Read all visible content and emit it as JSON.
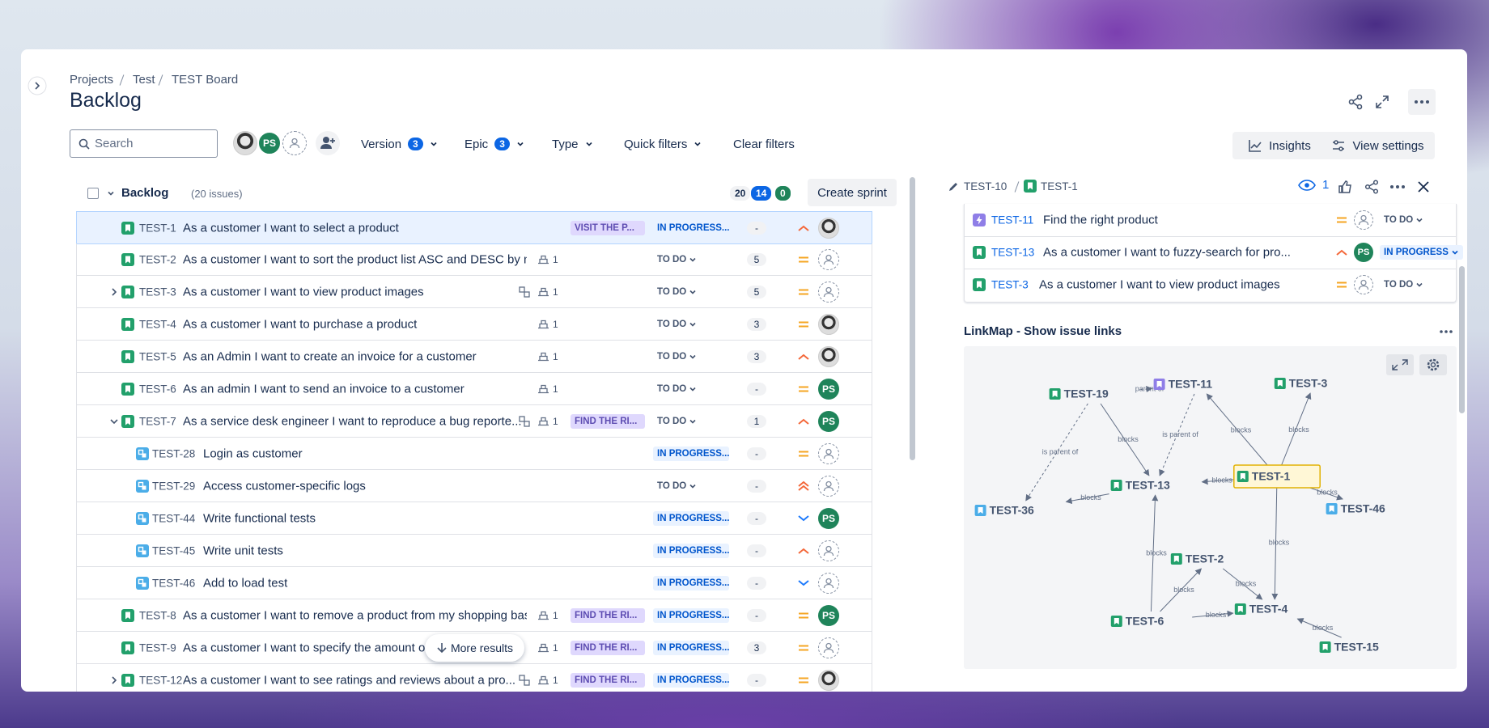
{
  "breadcrumbs": [
    "Projects",
    "Test",
    "TEST Board"
  ],
  "title": "Backlog",
  "search_placeholder": "Search",
  "avatars": [
    "PS"
  ],
  "filters": [
    {
      "label": "Version",
      "count": 3
    },
    {
      "label": "Epic",
      "count": 3
    },
    {
      "label": "Type"
    },
    {
      "label": "Quick filters"
    }
  ],
  "clear_filters": "Clear filters",
  "actions": [
    "Insights",
    "View settings"
  ],
  "backlog": {
    "name": "Backlog",
    "issue_count": "(20 issues)",
    "stats": [
      20,
      14,
      0
    ],
    "create_sprint": "Create sprint",
    "more_results": "More results",
    "rows": [
      {
        "key": "TEST-1",
        "type": "story",
        "summary": "As a customer I want to select a product",
        "epic": "VISIT THE P...",
        "status": "IN PROGRESS...",
        "estimate": "-",
        "priority": "high",
        "avatar": "photo",
        "selected": true
      },
      {
        "key": "TEST-2",
        "type": "story",
        "summary": "As a customer I want to sort the product list ASC and DESC by n...",
        "child_count": 1,
        "status": "TO DO",
        "estimate": 5,
        "priority": "medium",
        "avatar": "unassigned"
      },
      {
        "key": "TEST-3",
        "type": "story",
        "expand": "collapsed",
        "subtasks": true,
        "summary": "As a customer I want to view product images",
        "child_count": 1,
        "status": "TO DO",
        "estimate": 5,
        "priority": "medium",
        "avatar": "unassigned"
      },
      {
        "key": "TEST-4",
        "type": "story",
        "summary": "As a customer I want to purchase a product",
        "child_count": 1,
        "status": "TO DO",
        "estimate": 3,
        "priority": "medium",
        "avatar": "photo"
      },
      {
        "key": "TEST-5",
        "type": "story",
        "summary": "As an Admin I want to create an invoice for a customer",
        "child_count": 1,
        "status": "TO DO",
        "estimate": 3,
        "priority": "high",
        "avatar": "photo"
      },
      {
        "key": "TEST-6",
        "type": "story",
        "summary": "As an admin I want to send an invoice to a customer",
        "child_count": 1,
        "status": "TO DO",
        "estimate": "-",
        "priority": "medium",
        "assignee": "PS"
      },
      {
        "key": "TEST-7",
        "type": "story",
        "expand": "expanded",
        "subtasks": true,
        "summary": "As a service desk engineer I want to reproduce a bug reporte...",
        "child_count": 1,
        "epic": "FIND THE RI...",
        "status": "TO DO",
        "estimate": 1,
        "priority": "high",
        "assignee": "PS"
      },
      {
        "key": "TEST-28",
        "type": "subtask",
        "summary": "Login as customer",
        "status": "IN PROGRESS...",
        "estimate": "-",
        "priority": "medium",
        "avatar": "unassigned"
      },
      {
        "key": "TEST-29",
        "type": "subtask",
        "summary": "Access customer-specific logs",
        "status": "TO DO",
        "estimate": "-",
        "priority": "highest",
        "avatar": "unassigned"
      },
      {
        "key": "TEST-44",
        "type": "subtask",
        "summary": "Write functional tests",
        "status": "IN PROGRESS...",
        "estimate": "-",
        "priority": "low",
        "assignee": "PS"
      },
      {
        "key": "TEST-45",
        "type": "subtask",
        "summary": "Write unit tests",
        "status": "IN PROGRESS...",
        "estimate": "-",
        "priority": "high",
        "avatar": "unassigned"
      },
      {
        "key": "TEST-46",
        "type": "subtask",
        "summary": "Add to load test",
        "status": "IN PROGRESS...",
        "estimate": "-",
        "priority": "low",
        "avatar": "unassigned"
      },
      {
        "key": "TEST-8",
        "type": "story",
        "summary": "As a customer I want to remove a product from my shopping bas...",
        "child_count": 1,
        "epic": "FIND THE RI...",
        "status": "IN PROGRESS...",
        "estimate": "-",
        "priority": "medium",
        "assignee": "PS"
      },
      {
        "key": "TEST-9",
        "type": "story",
        "summary": "As a customer I want to specify the amount of",
        "child_count": 1,
        "epic": "FIND THE RI...",
        "status": "IN PROGRESS...",
        "estimate": 3,
        "priority": "medium",
        "avatar": "unassigned"
      },
      {
        "key": "TEST-12",
        "type": "story",
        "expand": "collapsed",
        "subtasks": true,
        "summary": "As a customer I want to see ratings and reviews about a pro...",
        "child_count": 1,
        "epic": "FIND THE RI...",
        "status": "IN PROGRESS...",
        "estimate": "-",
        "priority": "medium",
        "avatar": "photo"
      }
    ]
  },
  "detail": {
    "parent": "TEST-10",
    "key": "TEST-1",
    "watchers": 1,
    "linked": [
      {
        "key": "TEST-11",
        "type": "epic",
        "summary": "Find the right product",
        "priority": "medium",
        "avatar": "unassigned",
        "status": "TO DO"
      },
      {
        "key": "TEST-13",
        "type": "story",
        "summary": "As a customer I want to fuzzy-search for pro...",
        "priority": "high",
        "assignee": "PS",
        "status": "IN PROGRESS"
      },
      {
        "key": "TEST-3",
        "type": "story",
        "summary": "As a customer I want to view product images",
        "priority": "medium",
        "avatar": "unassigned",
        "status": "TO DO"
      }
    ]
  },
  "linkmap": {
    "title": "LinkMap - Show issue links",
    "nodes": [
      {
        "key": "TEST-19",
        "type": "story"
      },
      {
        "key": "TEST-11",
        "type": "epic"
      },
      {
        "key": "TEST-3",
        "type": "story"
      },
      {
        "key": "TEST-1",
        "type": "story",
        "selected": true
      },
      {
        "key": "TEST-13",
        "type": "story"
      },
      {
        "key": "TEST-36",
        "type": "subtask"
      },
      {
        "key": "TEST-46",
        "type": "subtask"
      },
      {
        "key": "TEST-2",
        "type": "story"
      },
      {
        "key": "TEST-4",
        "type": "story"
      },
      {
        "key": "TEST-6",
        "type": "story"
      },
      {
        "key": "TEST-15",
        "type": "story"
      }
    ],
    "edges": [
      {
        "from": "TEST-19",
        "to": "TEST-11",
        "label": "parent of",
        "dashed": true
      },
      {
        "from": "TEST-19",
        "to": "TEST-36",
        "label": "is parent of",
        "dashed": true
      },
      {
        "from": "TEST-11",
        "to": "TEST-13",
        "label": "is parent of",
        "dashed": true
      },
      {
        "from": "TEST-19",
        "to": "TEST-13",
        "label": "blocks"
      },
      {
        "from": "TEST-1",
        "to": "TEST-11",
        "label": "blocks"
      },
      {
        "from": "TEST-1",
        "to": "TEST-3",
        "label": "blocks"
      },
      {
        "from": "TEST-1",
        "to": "TEST-13",
        "label": "blocks"
      },
      {
        "from": "TEST-13",
        "to": "TEST-36",
        "label": "blocks"
      },
      {
        "from": "TEST-1",
        "to": "TEST-46",
        "label": "blocks"
      },
      {
        "from": "TEST-1",
        "to": "TEST-4",
        "label": "blocks"
      },
      {
        "from": "TEST-6",
        "to": "TEST-13",
        "label": "blocks"
      },
      {
        "from": "TEST-6",
        "to": "TEST-2",
        "label": "blocks"
      },
      {
        "from": "TEST-2",
        "to": "TEST-4",
        "label": "blocks"
      },
      {
        "from": "TEST-6",
        "to": "TEST-4",
        "label": "blocks"
      },
      {
        "from": "TEST-15",
        "to": "TEST-4",
        "label": "blocks"
      }
    ]
  }
}
